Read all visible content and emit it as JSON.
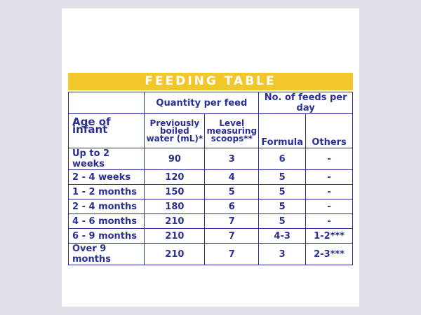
{
  "title": "FEEDING TABLE",
  "headers": {
    "quantity_per_feed": "Quantity per feed",
    "feeds_per_day": "No. of feeds per day",
    "age": "Age of infant",
    "water": "Previously boiled water (mL)*",
    "scoops": "Level measuring scoops**",
    "formula": "Formula",
    "others": "Others"
  },
  "rows": [
    {
      "age": "Up to 2 weeks",
      "water": "90",
      "scoops": "3",
      "formula": "6",
      "others": "-"
    },
    {
      "age": "2 - 4 weeks",
      "water": "120",
      "scoops": "4",
      "formula": "5",
      "others": "-"
    },
    {
      "age": "1 - 2 months",
      "water": "150",
      "scoops": "5",
      "formula": "5",
      "others": "-"
    },
    {
      "age": "2 - 4 months",
      "water": "180",
      "scoops": "6",
      "formula": "5",
      "others": "-"
    },
    {
      "age": "4 - 6 months",
      "water": "210",
      "scoops": "7",
      "formula": "5",
      "others": "-"
    },
    {
      "age": "6 - 9 months",
      "water": "210",
      "scoops": "7",
      "formula": "4-3",
      "others": "1-2***"
    },
    {
      "age": "Over 9 months",
      "water": "210",
      "scoops": "7",
      "formula": "3",
      "others": "2-3***"
    }
  ]
}
